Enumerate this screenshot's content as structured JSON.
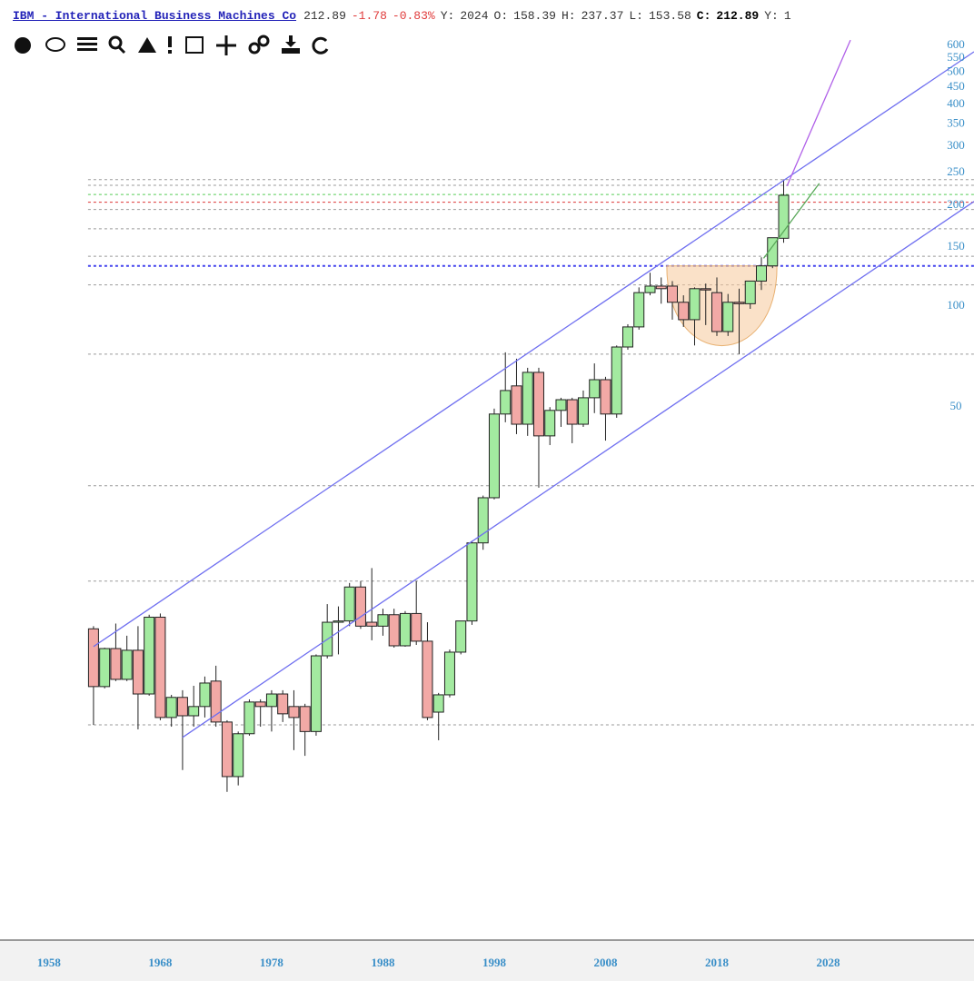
{
  "header": {
    "title": "IBM - International Business Machines Co",
    "last": "212.89",
    "change": "-1.78",
    "change_pct": "-0.83%",
    "fields": [
      {
        "label": "Y:",
        "value": "2024"
      },
      {
        "label": "O:",
        "value": "158.39"
      },
      {
        "label": "H:",
        "value": "237.37"
      },
      {
        "label": "L:",
        "value": "153.58"
      },
      {
        "label": "C:",
        "value": "212.89"
      },
      {
        "label": "Y:",
        "value": "1"
      }
    ]
  },
  "chart_data": {
    "type": "candlestick",
    "log_scale": true,
    "up_color": "#a3eaa0",
    "down_color": "#f2a9a6",
    "axis_color": "#3a8fc8",
    "x": [
      1962,
      1963,
      1964,
      1965,
      1966,
      1967,
      1968,
      1969,
      1970,
      1971,
      1972,
      1973,
      1974,
      1975,
      1976,
      1977,
      1978,
      1979,
      1980,
      1981,
      1982,
      1983,
      1984,
      1985,
      1986,
      1987,
      1988,
      1989,
      1990,
      1991,
      1992,
      1993,
      1994,
      1995,
      1996,
      1997,
      1998,
      1999,
      2000,
      2001,
      2002,
      2003,
      2004,
      2005,
      2006,
      2007,
      2008,
      2009,
      2010,
      2011,
      2012,
      2013,
      2014,
      2015,
      2016,
      2017,
      2018,
      2019,
      2020,
      2021,
      2022,
      2023,
      2024
    ],
    "open": [
      10.8,
      7.26,
      9.43,
      7.63,
      9.32,
      6.9,
      11.7,
      5.87,
      6.74,
      5.94,
      6.33,
      7.54,
      5.69,
      3.91,
      5.25,
      6.53,
      6.33,
      6.9,
      6.33,
      6.33,
      5.33,
      8.97,
      11.3,
      11.4,
      14.4,
      11.3,
      11.0,
      11.9,
      9.61,
      12.0,
      9.92,
      6.09,
      6.86,
      9.2,
      11.4,
      19.5,
      26.6,
      47.3,
      57.4,
      44.1,
      63.0,
      40.7,
      48.5,
      52.2,
      44.1,
      52.9,
      59.9,
      47.3,
      75.0,
      86.1,
      109,
      114,
      114,
      102,
      90.5,
      112,
      109,
      83.4,
      102,
      101,
      118,
      131,
      158.39
    ],
    "high": [
      11.0,
      9.49,
      11.2,
      10.3,
      11.0,
      11.9,
      12.0,
      6.86,
      7.08,
      7.3,
      7.78,
      8.38,
      5.76,
      5.33,
      6.65,
      6.65,
      7.08,
      7.08,
      7.08,
      6.45,
      9.06,
      12.8,
      12.6,
      14.8,
      15.0,
      16.4,
      12.4,
      12.4,
      12.2,
      15.0,
      11.3,
      6.95,
      9.37,
      11.4,
      19.8,
      27.0,
      49.1,
      72.3,
      69.2,
      65.0,
      65.0,
      49.6,
      52.9,
      52.9,
      55.6,
      67.0,
      61.1,
      75.8,
      87.7,
      113,
      125,
      121,
      118,
      107,
      113,
      116,
      121,
      108,
      112,
      118,
      139,
      159,
      237.37
    ],
    "low": [
      5.58,
      7.17,
      7.54,
      7.54,
      5.41,
      6.82,
      5.76,
      5.51,
      4.09,
      5.51,
      5.87,
      5.51,
      3.52,
      3.68,
      5.18,
      5.51,
      5.33,
      5.69,
      4.69,
      4.51,
      5.18,
      8.81,
      9.06,
      11.0,
      10.8,
      9.98,
      10.3,
      9.49,
      9.55,
      9.67,
      5.76,
      5.02,
      6.74,
      9.06,
      11.1,
      18.6,
      26.3,
      44.7,
      41.2,
      40.7,
      28.5,
      38.2,
      43.3,
      38.7,
      43.3,
      47.6,
      39.4,
      46.1,
      73.6,
      84.5,
      107,
      101,
      90.5,
      86.1,
      75.8,
      87.2,
      80.9,
      80.9,
      71.4,
      97.5,
      111,
      129,
      153.58
    ],
    "close": [
      7.26,
      9.43,
      7.63,
      9.32,
      6.9,
      11.7,
      5.87,
      6.74,
      5.94,
      6.33,
      7.44,
      5.69,
      3.91,
      5.25,
      6.53,
      6.33,
      6.9,
      6.02,
      5.87,
      5.33,
      8.97,
      11.3,
      11.4,
      14.4,
      11.0,
      11.0,
      11.9,
      9.61,
      12.0,
      9.92,
      5.87,
      6.86,
      9.2,
      11.4,
      19.5,
      26.6,
      47.3,
      55.6,
      44.1,
      63.0,
      40.7,
      48.5,
      52.2,
      44.1,
      52.9,
      59.9,
      47.3,
      75.0,
      86.1,
      109,
      114,
      112,
      102,
      90.5,
      112,
      111,
      83.4,
      102,
      101,
      118,
      131,
      159,
      212.89
    ],
    "xlim": [
      1953.6,
      2041.1
    ],
    "ylim": [
      1.27,
      635
    ],
    "xticks": [
      1958,
      1968,
      1978,
      1988,
      1998,
      2008,
      2018,
      2028
    ],
    "yticks": [
      50,
      100,
      150,
      200,
      250,
      300,
      350,
      400,
      450,
      500,
      550,
      600
    ],
    "levels": [
      {
        "value": 237,
        "color": "#999999"
      },
      {
        "value": 228,
        "color": "#999999"
      },
      {
        "value": 214,
        "color": "#55cc55"
      },
      {
        "value": 203,
        "color": "#dd3333"
      },
      {
        "value": 193,
        "color": "#999999"
      },
      {
        "value": 169,
        "color": "#999999"
      },
      {
        "value": 140,
        "color": "#999999"
      },
      {
        "value": 131,
        "color": "#4444ee"
      },
      {
        "value": 115,
        "color": "#999999"
      },
      {
        "value": 71.4,
        "color": "#999999"
      },
      {
        "value": 28.9,
        "color": "#999999"
      },
      {
        "value": 15.0,
        "color": "#999999"
      },
      {
        "value": 5.58,
        "color": "#999999"
      }
    ],
    "trendlines": [
      {
        "x": [
          1962.0,
          2041.1
        ],
        "y": [
          9.56,
          571
        ],
        "color": "#6f6ff0"
      },
      {
        "x": [
          1970.0,
          2041.1
        ],
        "y": [
          5.12,
          204
        ],
        "color": "#6f6ff0"
      },
      {
        "x": [
          2024.3,
          2030.0
        ],
        "y": [
          227,
          619
        ],
        "color": "#b060e8"
      },
      {
        "x": [
          2022.2,
          2027.2
        ],
        "y": [
          138,
          231
        ],
        "color": "#5aa85a"
      }
    ],
    "cup": {
      "x": [
        2013.5,
        2023.4
      ],
      "top": 131,
      "bottom": 71.4,
      "color": "#f5c89a"
    }
  }
}
